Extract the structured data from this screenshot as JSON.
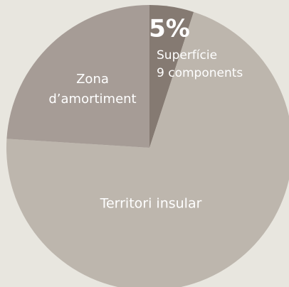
{
  "chart_data": {
    "type": "pie",
    "slices": [
      {
        "value": 5,
        "value_label": "5%",
        "label": [
          "Superfície",
          "9 components"
        ],
        "color": "#857a72"
      },
      {
        "value": 71,
        "label": [
          "Territori insular"
        ],
        "color": "#bdb6ad"
      },
      {
        "value": 24,
        "label": [
          "Zona",
          "d’amortiment"
        ],
        "color": "#a69c96"
      }
    ]
  }
}
